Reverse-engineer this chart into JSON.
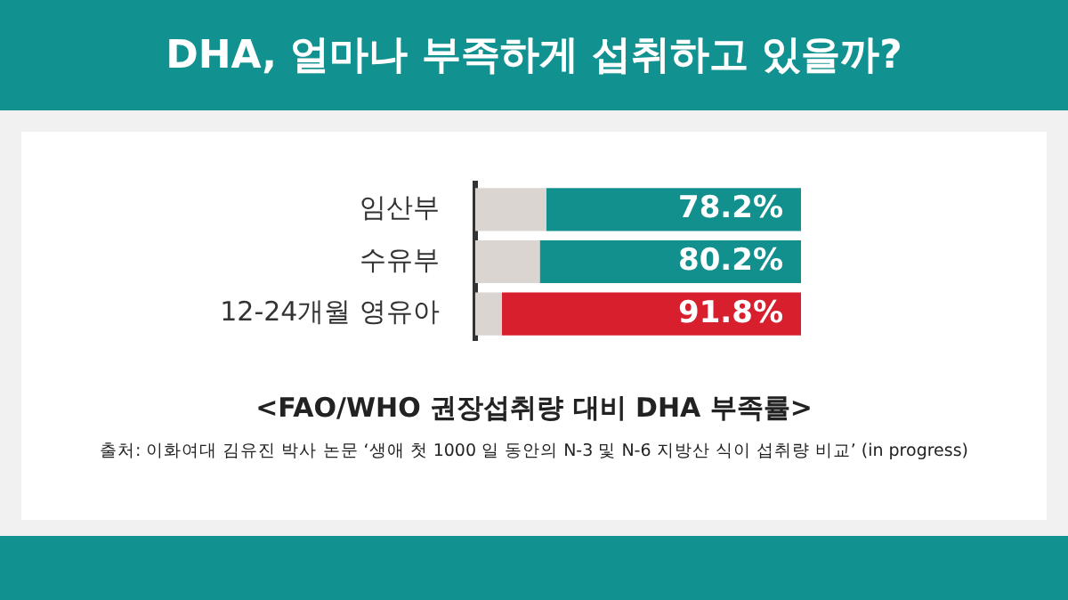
{
  "chart_data": {
    "type": "bar",
    "orientation": "horizontal",
    "stacked": true,
    "tick_labels": "y",
    "title": "DHA, 얼마나 부족하게 섭취하고 있을까?",
    "subtitle": "<FAO/WHO 권장섭취량 대비 DHA 부족률>",
    "annotations": [
      "출처: 이화여대 김유진 박사 논문 ‘생애 첫 1000 일 동안의 N-3 및 N-6 지방산 식이 섭취량 비교’ (in progress)"
    ],
    "categories": [
      "임산부",
      "수유부",
      "12-24개월 영유아"
    ],
    "legend": false,
    "series": [
      {
        "color": "#dad5d1",
        "values": [
          21.8,
          19.8,
          8.2
        ]
      },
      {
        "colors": [
          "#12908e",
          "#12908e",
          "#d81f2e"
        ],
        "values": [
          78.2,
          80.2,
          91.8
        ],
        "value_labels": [
          "78.2%",
          "80.2%",
          "91.8%"
        ]
      }
    ]
  }
}
